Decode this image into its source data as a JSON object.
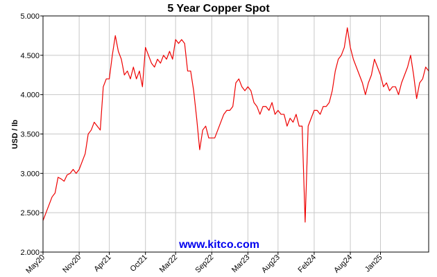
{
  "chart_data": {
    "type": "line",
    "title": "5 Year Copper Spot",
    "ylabel": "USD / lb",
    "watermark": "www.kitco.com",
    "grid": true,
    "ylim": [
      2,
      5
    ],
    "yticks": [
      {
        "value": 2,
        "label": "2.000"
      },
      {
        "value": 2.5,
        "label": "2.500"
      },
      {
        "value": 3,
        "label": "3.000"
      },
      {
        "value": 3.5,
        "label": "3.500"
      },
      {
        "value": 4,
        "label": "4.000"
      },
      {
        "value": 4.5,
        "label": "4.500"
      },
      {
        "value": 5,
        "label": "5.000"
      }
    ],
    "categories": [
      "May20",
      null,
      null,
      null,
      null,
      null,
      null,
      null,
      null,
      null,
      null,
      null,
      "Nov20",
      null,
      null,
      null,
      null,
      null,
      null,
      null,
      null,
      null,
      "Apr21",
      null,
      null,
      null,
      null,
      null,
      null,
      null,
      null,
      null,
      null,
      null,
      "Oct21",
      null,
      null,
      null,
      null,
      null,
      null,
      null,
      null,
      null,
      "Mar22",
      null,
      null,
      null,
      null,
      null,
      null,
      null,
      null,
      null,
      null,
      null,
      "Sep22",
      null,
      null,
      null,
      null,
      null,
      null,
      null,
      null,
      null,
      null,
      null,
      "Mar23",
      null,
      null,
      null,
      null,
      null,
      null,
      null,
      null,
      null,
      "Aug23",
      null,
      null,
      null,
      null,
      null,
      null,
      null,
      null,
      null,
      null,
      null,
      "Feb24",
      null,
      null,
      null,
      null,
      null,
      null,
      null,
      null,
      null,
      null,
      null,
      "Aug24",
      null,
      null,
      null,
      null,
      null,
      null,
      null,
      null,
      null,
      "Jan25",
      null,
      null,
      null,
      null,
      null,
      null,
      null,
      null,
      null,
      null,
      null,
      null,
      null,
      null,
      null,
      null
    ],
    "series": [
      {
        "name": "Copper",
        "color": "#ee0000",
        "values": [
          2.4,
          2.5,
          2.6,
          2.7,
          2.75,
          2.95,
          2.93,
          2.9,
          2.98,
          3.0,
          3.05,
          3.0,
          3.05,
          3.15,
          3.25,
          3.5,
          3.55,
          3.65,
          3.6,
          3.55,
          4.1,
          4.2,
          4.2,
          4.5,
          4.75,
          4.55,
          4.45,
          4.25,
          4.3,
          4.2,
          4.35,
          4.2,
          4.3,
          4.1,
          4.6,
          4.5,
          4.4,
          4.35,
          4.45,
          4.4,
          4.5,
          4.45,
          4.55,
          4.45,
          4.7,
          4.65,
          4.7,
          4.65,
          4.3,
          4.3,
          4.05,
          3.7,
          3.3,
          3.55,
          3.6,
          3.45,
          3.45,
          3.45,
          3.55,
          3.65,
          3.75,
          3.8,
          3.8,
          3.85,
          4.15,
          4.2,
          4.1,
          4.05,
          4.1,
          4.05,
          3.9,
          3.85,
          3.75,
          3.85,
          3.85,
          3.8,
          3.9,
          3.75,
          3.8,
          3.75,
          3.75,
          3.6,
          3.7,
          3.65,
          3.75,
          3.6,
          3.6,
          2.38,
          3.6,
          3.7,
          3.8,
          3.8,
          3.75,
          3.85,
          3.85,
          3.9,
          4.05,
          4.3,
          4.45,
          4.5,
          4.6,
          4.85,
          4.6,
          4.45,
          4.35,
          4.25,
          4.15,
          4.0,
          4.15,
          4.25,
          4.45,
          4.35,
          4.25,
          4.1,
          4.15,
          4.05,
          4.1,
          4.1,
          4.0,
          4.15,
          4.25,
          4.35,
          4.5,
          4.25,
          3.95,
          4.15,
          4.2,
          4.35,
          4.3
        ]
      }
    ]
  }
}
